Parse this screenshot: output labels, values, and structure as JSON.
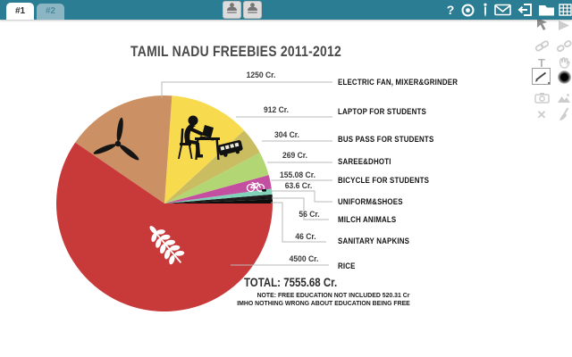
{
  "window": {
    "accent_color": "#2a7d93",
    "tabs": [
      {
        "label": "#1",
        "active": true
      },
      {
        "label": "#2",
        "active": false
      }
    ],
    "toolbar": {
      "help_glyph": "?",
      "icons": [
        "help",
        "record",
        "stylus",
        "mail",
        "export",
        "folder",
        "grid"
      ]
    },
    "presence_avatars": 2
  },
  "sidebar_tools": {
    "icons": [
      "select",
      "play",
      "link",
      "unlink",
      "text",
      "pan-hand",
      "pen",
      "brush-size",
      "camera",
      "image",
      "delete",
      "eraser"
    ],
    "active_tool": "pen",
    "text_tool_glyph": "T",
    "delete_glyph": "✕"
  },
  "chart_data": {
    "type": "pie",
    "title": "TAMIL NADU FREEBIES 2011-2012",
    "unit": "Cr.",
    "total": 7555.68,
    "total_label": "TOTAL: 7555.68 Cr.",
    "note_line1": "NOTE: FREE EDUCATION NOT INCLUDED 520.31 Cr",
    "note_line2": "IMHO NOTHING WRONG ABOUT EDUCATION BEING FREE",
    "legend_position": "right-leader-lines",
    "slices": [
      {
        "label": "ELECTRIC FAN, MIXER&GRINDER",
        "value": 1250,
        "value_label": "1250 Cr.",
        "color": "#cb9063",
        "icon": "ceiling-fan"
      },
      {
        "label": "LAPTOP FOR STUDENTS",
        "value": 912,
        "value_label": "912 Cr.",
        "color": "#f8da4f",
        "icon": "person-with-laptop"
      },
      {
        "label": "BUS PASS FOR STUDENTS",
        "value": 304,
        "value_label": "304 Cr.",
        "color": "#cabc60",
        "icon": "bus"
      },
      {
        "label": "SAREE&DHOTI",
        "value": 269,
        "value_label": "269 Cr.",
        "color": "#b3d675",
        "icon": null
      },
      {
        "label": "BICYCLE FOR STUDENTS",
        "value": 155.08,
        "value_label": "155.08 Cr.",
        "color": "#c44fa0",
        "icon": "bicycle"
      },
      {
        "label": "UNIFORM&SHOES",
        "value": 63.6,
        "value_label": "63.6 Cr.",
        "color": "#80d3b9",
        "icon": "shoes"
      },
      {
        "label": "MILCH ANIMALS",
        "value": 56,
        "value_label": "56 Cr.",
        "color": "#1b1b1b",
        "icon": "cattle"
      },
      {
        "label": "SANITARY NAPKINS",
        "value": 46,
        "value_label": "46 Cr.",
        "color": "#0d0d0d",
        "icon": null
      },
      {
        "label": "RICE",
        "value": 4500,
        "value_label": "4500 Cr.",
        "color": "#c8393a",
        "icon": "wheat"
      }
    ]
  }
}
